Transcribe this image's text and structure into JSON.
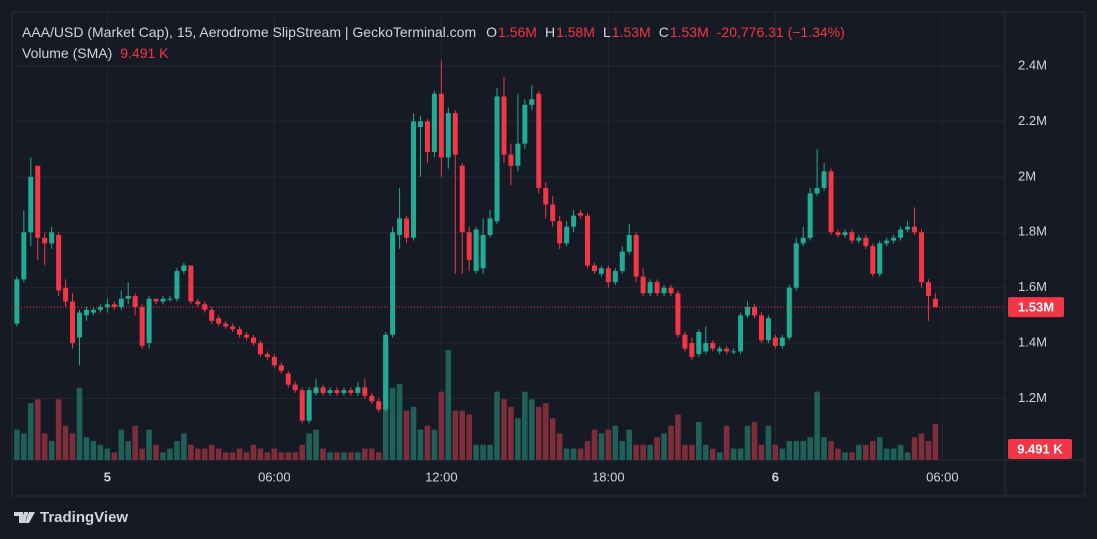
{
  "chart_data": {
    "type": "candlestick",
    "title": "AAA/USD (Market Cap), 15, Aerodrome SlipStream | GeckoTerminal.com",
    "ohlc": [
      {
        "key": "O",
        "label": "1.56M"
      },
      {
        "key": "H",
        "label": "1.58M"
      },
      {
        "key": "L",
        "label": "1.53M"
      },
      {
        "key": "C",
        "label": "1.53M"
      }
    ],
    "change": "-20,776.31 (−1.34%)",
    "volume_title": "Volume (SMA)",
    "volume_sma": "9.491 K",
    "brand": "TradingView",
    "up_color": "#22ab94",
    "down_color": "#f23645",
    "volume_up_color": "#1f6159",
    "volume_down_color": "#7e2d3a",
    "grid": true,
    "open": [
      1.47,
      1.63,
      1.8,
      2.04,
      1.78,
      1.76,
      1.79,
      1.6,
      1.55,
      1.42,
      1.5,
      1.51,
      1.52,
      1.53,
      1.54,
      1.53,
      1.56,
      1.57,
      1.53,
      1.4,
      1.56,
      1.55,
      1.56,
      1.56,
      1.66,
      1.68,
      1.55,
      1.54,
      1.52,
      1.49,
      1.47,
      1.46,
      1.45,
      1.43,
      1.42,
      1.4,
      1.36,
      1.35,
      1.32,
      1.29,
      1.25,
      1.23,
      1.12,
      1.22,
      1.24,
      1.22,
      1.23,
      1.22,
      1.23,
      1.22,
      1.24,
      1.21,
      1.19,
      1.16,
      1.43,
      1.79,
      1.85,
      1.78,
      2.18,
      2.2,
      2.09,
      2.3,
      2.07,
      2.23,
      2.04,
      1.8,
      1.66,
      1.67,
      1.79,
      1.84,
      2.29,
      2.08,
      2.04,
      2.12,
      2.26,
      2.3,
      1.96,
      1.9,
      1.84,
      1.76,
      1.82,
      1.87,
      1.86,
      1.68,
      1.65,
      1.67,
      1.62,
      1.66,
      1.73,
      1.79,
      1.64,
      1.58,
      1.62,
      1.58,
      1.6,
      1.58,
      1.43,
      1.4,
      1.36,
      1.37,
      1.4,
      1.37,
      1.38,
      1.37,
      1.37,
      1.5,
      1.53,
      1.5,
      1.41,
      1.42,
      1.39,
      1.42,
      1.6,
      1.76,
      1.78,
      1.94,
      1.96,
      2.02,
      1.8,
      1.79,
      1.8,
      1.77,
      1.78,
      1.75,
      1.65,
      1.76,
      1.77,
      1.78,
      1.81,
      1.82,
      1.8,
      1.62,
      1.56
    ],
    "high": [
      1.64,
      1.88,
      2.07,
      2.04,
      1.8,
      1.82,
      1.8,
      1.63,
      1.58,
      1.52,
      1.53,
      1.53,
      1.54,
      1.56,
      1.55,
      1.59,
      1.62,
      1.58,
      1.54,
      1.57,
      1.56,
      1.57,
      1.57,
      1.67,
      1.69,
      1.68,
      1.56,
      1.55,
      1.53,
      1.5,
      1.48,
      1.47,
      1.46,
      1.44,
      1.43,
      1.41,
      1.37,
      1.36,
      1.33,
      1.3,
      1.26,
      1.24,
      1.24,
      1.27,
      1.25,
      1.24,
      1.24,
      1.24,
      1.24,
      1.26,
      1.27,
      1.22,
      1.2,
      1.44,
      1.82,
      1.96,
      1.86,
      2.23,
      2.22,
      2.21,
      2.31,
      2.42,
      2.25,
      2.24,
      2.05,
      1.82,
      1.82,
      1.85,
      1.88,
      2.32,
      2.36,
      2.12,
      2.3,
      2.28,
      2.33,
      2.31,
      1.98,
      1.93,
      1.86,
      1.84,
      1.88,
      1.88,
      1.87,
      1.69,
      1.68,
      1.68,
      1.67,
      1.75,
      1.83,
      1.8,
      1.67,
      1.63,
      1.63,
      1.61,
      1.61,
      1.59,
      1.44,
      1.42,
      1.45,
      1.46,
      1.41,
      1.39,
      1.39,
      1.38,
      1.51,
      1.55,
      1.54,
      1.51,
      1.5,
      1.43,
      1.43,
      1.61,
      1.78,
      1.82,
      1.96,
      2.1,
      2.05,
      2.03,
      1.81,
      1.81,
      1.81,
      1.79,
      1.79,
      1.76,
      1.77,
      1.78,
      1.79,
      1.82,
      1.84,
      1.89,
      1.81,
      1.63,
      1.58
    ],
    "low": [
      1.46,
      1.62,
      1.75,
      1.7,
      1.68,
      1.74,
      1.57,
      1.53,
      1.38,
      1.32,
      1.48,
      1.5,
      1.51,
      1.51,
      1.52,
      1.52,
      1.54,
      1.5,
      1.38,
      1.38,
      1.54,
      1.54,
      1.55,
      1.55,
      1.65,
      1.54,
      1.53,
      1.51,
      1.47,
      1.46,
      1.45,
      1.44,
      1.42,
      1.41,
      1.39,
      1.35,
      1.34,
      1.31,
      1.29,
      1.24,
      1.22,
      1.11,
      1.11,
      1.21,
      1.21,
      1.21,
      1.21,
      1.21,
      1.21,
      1.21,
      1.2,
      1.18,
      1.15,
      1.15,
      1.42,
      1.74,
      1.76,
      1.77,
      2.0,
      2.05,
      2.07,
      2.0,
      2.03,
      1.65,
      1.65,
      1.66,
      1.65,
      1.65,
      1.78,
      1.83,
      2.05,
      1.97,
      2.02,
      2.1,
      2.24,
      1.94,
      1.85,
      1.82,
      1.74,
      1.75,
      1.8,
      1.85,
      1.67,
      1.65,
      1.64,
      1.6,
      1.61,
      1.65,
      1.72,
      1.62,
      1.57,
      1.57,
      1.57,
      1.57,
      1.57,
      1.42,
      1.37,
      1.34,
      1.35,
      1.36,
      1.37,
      1.36,
      1.36,
      1.36,
      1.36,
      1.49,
      1.49,
      1.4,
      1.4,
      1.38,
      1.38,
      1.41,
      1.59,
      1.75,
      1.77,
      1.93,
      1.95,
      1.79,
      1.78,
      1.78,
      1.76,
      1.76,
      1.74,
      1.64,
      1.64,
      1.75,
      1.76,
      1.77,
      1.8,
      1.79,
      1.6,
      1.48,
      1.53
    ],
    "close": [
      1.63,
      1.8,
      2.0,
      1.78,
      1.76,
      1.8,
      1.59,
      1.55,
      1.4,
      1.51,
      1.52,
      1.52,
      1.53,
      1.54,
      1.53,
      1.56,
      1.57,
      1.53,
      1.39,
      1.56,
      1.55,
      1.56,
      1.56,
      1.66,
      1.68,
      1.55,
      1.54,
      1.52,
      1.48,
      1.47,
      1.46,
      1.45,
      1.43,
      1.42,
      1.4,
      1.36,
      1.35,
      1.32,
      1.3,
      1.25,
      1.23,
      1.12,
      1.23,
      1.24,
      1.22,
      1.23,
      1.22,
      1.23,
      1.22,
      1.24,
      1.21,
      1.19,
      1.16,
      1.43,
      1.8,
      1.85,
      1.78,
      2.2,
      2.2,
      2.09,
      2.3,
      2.07,
      2.23,
      2.08,
      1.8,
      1.7,
      1.81,
      1.79,
      1.85,
      2.29,
      2.08,
      2.04,
      2.12,
      2.26,
      2.28,
      1.96,
      1.9,
      1.84,
      1.76,
      1.82,
      1.86,
      1.86,
      1.68,
      1.66,
      1.67,
      1.62,
      1.66,
      1.73,
      1.79,
      1.64,
      1.58,
      1.62,
      1.58,
      1.6,
      1.58,
      1.43,
      1.38,
      1.35,
      1.44,
      1.4,
      1.38,
      1.38,
      1.37,
      1.37,
      1.5,
      1.53,
      1.5,
      1.41,
      1.49,
      1.39,
      1.42,
      1.6,
      1.76,
      1.78,
      1.94,
      1.96,
      2.02,
      1.8,
      1.79,
      1.8,
      1.77,
      1.78,
      1.75,
      1.65,
      1.76,
      1.77,
      1.78,
      1.81,
      1.82,
      1.8,
      1.62,
      1.57,
      1.53
    ],
    "volume": [
      8,
      7,
      15,
      16,
      7,
      5,
      16,
      9,
      7,
      19,
      6,
      5,
      4,
      3,
      2,
      8,
      5,
      9,
      3,
      8,
      4,
      2,
      3,
      5,
      7,
      4,
      3,
      3,
      4,
      3,
      2,
      2,
      3,
      2,
      4,
      3,
      2,
      3,
      2,
      2,
      2,
      4,
      7,
      8,
      3,
      2,
      2,
      2,
      2,
      2,
      3,
      3,
      2,
      31,
      19,
      20,
      13,
      14,
      8,
      9,
      8,
      18,
      29,
      13,
      13,
      12,
      4,
      4,
      4,
      18,
      16,
      14,
      11,
      18,
      16,
      14,
      15,
      11,
      7,
      3,
      3,
      3,
      5,
      8,
      7,
      8,
      9,
      5,
      8,
      4,
      4,
      4,
      6,
      7,
      9,
      12,
      4,
      4,
      10,
      4,
      3,
      2,
      9,
      3,
      3,
      9,
      10,
      4,
      9,
      4,
      3,
      5,
      5,
      5,
      6,
      18,
      6,
      5,
      3,
      2,
      2,
      4,
      4,
      5,
      6,
      3,
      3,
      4,
      2,
      6,
      7,
      5,
      9.491
    ],
    "volume_lim": [
      0,
      118
    ],
    "last_price": {
      "value": 1.53,
      "label": "1.53M"
    },
    "last_volume": {
      "value": 9.491,
      "label": "9.491 K"
    },
    "xlim": [
      -0.7,
      142
    ],
    "xticks": [
      {
        "value": 13,
        "label": "5"
      },
      {
        "value": 37,
        "label": "06:00"
      },
      {
        "value": 61,
        "label": "12:00"
      },
      {
        "value": 85,
        "label": "18:00"
      },
      {
        "value": 109,
        "label": "6"
      },
      {
        "value": 133,
        "label": "06:00"
      }
    ],
    "ylim": [
      0.978,
      2.595
    ],
    "yticks": [
      {
        "value": 1.2,
        "label": "1.2M"
      },
      {
        "value": 1.4,
        "label": "1.4M"
      },
      {
        "value": 1.6,
        "label": "1.6M"
      },
      {
        "value": 1.8,
        "label": "1.8M"
      },
      {
        "value": 2,
        "label": "2M"
      },
      {
        "value": 2.2,
        "label": "2.2M"
      },
      {
        "value": 2.4,
        "label": "2.4M"
      }
    ]
  }
}
